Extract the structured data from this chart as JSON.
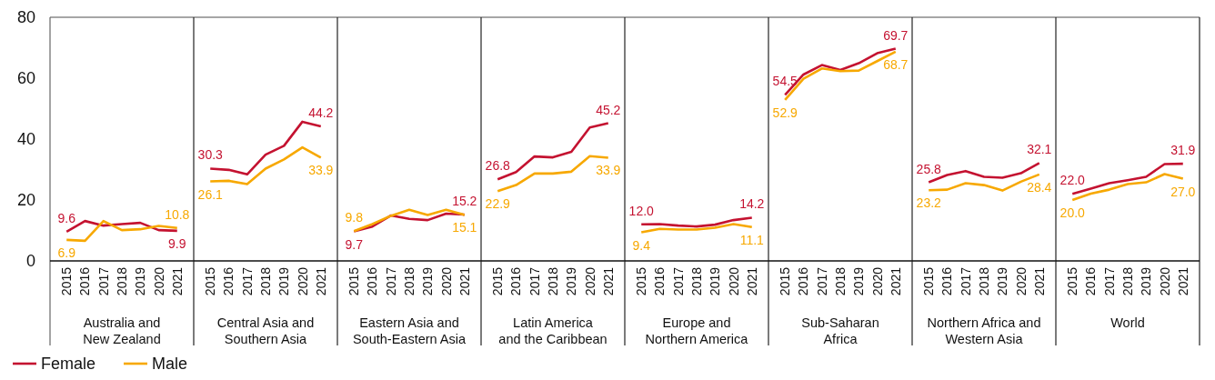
{
  "chart_data": [
    {
      "type": "line",
      "xlabel": "Australia and\nNew Zealand",
      "categories": [
        "2015",
        "2016",
        "2017",
        "2018",
        "2019",
        "2020",
        "2021"
      ],
      "series": [
        {
          "name": "Female",
          "color": "#c41230",
          "values": [
            9.6,
            13.1,
            11.6,
            12.1,
            12.5,
            10.1,
            9.9
          ],
          "value_labels": [
            "9.6",
            null,
            null,
            null,
            null,
            null,
            "9.9"
          ]
        },
        {
          "name": "Male",
          "color": "#f7a800",
          "values": [
            6.9,
            6.6,
            13.1,
            10.1,
            10.4,
            11.5,
            10.8
          ],
          "value_labels": [
            "6.9",
            null,
            null,
            null,
            null,
            null,
            "10.8"
          ]
        }
      ],
      "ylim": [
        0,
        80
      ],
      "yticks": [
        0,
        20,
        40,
        60,
        80
      ],
      "legend": "bottom"
    },
    {
      "type": "line",
      "xlabel": "Central Asia and\nSouthern Asia",
      "categories": [
        "2015",
        "2016",
        "2017",
        "2018",
        "2019",
        "2020",
        "2021"
      ],
      "series": [
        {
          "color": "#c41230",
          "values": [
            30.3,
            29.9,
            28.4,
            34.9,
            37.8,
            45.7,
            44.2
          ],
          "value_labels": [
            "30.3",
            null,
            null,
            null,
            null,
            null,
            "44.2"
          ]
        },
        {
          "color": "#f7a800",
          "values": [
            26.1,
            26.3,
            25.2,
            30.3,
            33.3,
            37.3,
            33.9
          ],
          "value_labels": [
            "26.1",
            null,
            null,
            null,
            null,
            null,
            "33.9"
          ]
        }
      ],
      "ylim": [
        0,
        80
      ],
      "tick_labels": "x"
    },
    {
      "type": "line",
      "xlabel": "Eastern Asia and\nSouth-Eastern Asia",
      "categories": [
        "2015",
        "2016",
        "2017",
        "2018",
        "2019",
        "2020",
        "2021"
      ],
      "series": [
        {
          "color": "#c41230",
          "values": [
            9.7,
            11.3,
            14.9,
            13.8,
            13.4,
            15.5,
            15.2
          ],
          "value_labels": [
            "9.7",
            null,
            null,
            null,
            null,
            null,
            "15.2"
          ]
        },
        {
          "color": "#f7a800",
          "values": [
            9.8,
            12.1,
            14.8,
            16.8,
            15.1,
            16.8,
            15.1
          ],
          "value_labels": [
            "9.8",
            null,
            null,
            null,
            null,
            null,
            "15.1"
          ]
        }
      ],
      "ylim": [
        0,
        80
      ],
      "tick_labels": "x"
    },
    {
      "type": "line",
      "xlabel": "Latin America\nand the Caribbean",
      "categories": [
        "2015",
        "2016",
        "2017",
        "2018",
        "2019",
        "2020",
        "2021"
      ],
      "series": [
        {
          "color": "#c41230",
          "values": [
            26.8,
            29.2,
            34.3,
            34.0,
            35.8,
            43.8,
            45.2
          ],
          "value_labels": [
            "26.8",
            null,
            null,
            null,
            null,
            null,
            "45.2"
          ]
        },
        {
          "color": "#f7a800",
          "values": [
            22.9,
            24.9,
            28.7,
            28.7,
            29.3,
            34.4,
            33.9
          ],
          "value_labels": [
            "22.9",
            null,
            null,
            null,
            null,
            null,
            "33.9"
          ]
        }
      ],
      "ylim": [
        0,
        80
      ],
      "tick_labels": "x"
    },
    {
      "type": "line",
      "xlabel": "Europe and\nNorthern America",
      "categories": [
        "2015",
        "2016",
        "2017",
        "2018",
        "2019",
        "2020",
        "2021"
      ],
      "series": [
        {
          "color": "#c41230",
          "values": [
            12.0,
            12.1,
            11.6,
            11.3,
            11.9,
            13.4,
            14.2
          ],
          "value_labels": [
            "12.0",
            null,
            null,
            null,
            null,
            null,
            "14.2"
          ]
        },
        {
          "color": "#f7a800",
          "values": [
            9.4,
            10.5,
            10.3,
            10.3,
            10.9,
            12.1,
            11.1
          ],
          "value_labels": [
            "9.4",
            null,
            null,
            null,
            null,
            null,
            "11.1"
          ]
        }
      ],
      "ylim": [
        0,
        80
      ],
      "tick_labels": "x"
    },
    {
      "type": "line",
      "xlabel": "Sub-Saharan\nAfrica",
      "categories": [
        "2015",
        "2016",
        "2017",
        "2018",
        "2019",
        "2020",
        "2021"
      ],
      "series": [
        {
          "color": "#c41230",
          "values": [
            54.5,
            61.2,
            64.3,
            62.7,
            64.9,
            68.2,
            69.7
          ],
          "value_labels": [
            "54.5",
            null,
            null,
            null,
            null,
            null,
            "69.7"
          ]
        },
        {
          "color": "#f7a800",
          "values": [
            52.9,
            59.8,
            63.2,
            62.3,
            62.5,
            65.6,
            68.7
          ],
          "value_labels": [
            "52.9",
            null,
            null,
            null,
            null,
            null,
            "68.7"
          ]
        }
      ],
      "ylim": [
        0,
        80
      ],
      "tick_labels": "x"
    },
    {
      "type": "line",
      "xlabel": "Northern Africa and\nWestern Asia",
      "categories": [
        "2015",
        "2016",
        "2017",
        "2018",
        "2019",
        "2020",
        "2021"
      ],
      "series": [
        {
          "color": "#c41230",
          "values": [
            25.8,
            28.2,
            29.5,
            27.6,
            27.3,
            28.8,
            32.1
          ],
          "value_labels": [
            "25.8",
            null,
            null,
            null,
            null,
            null,
            "32.1"
          ]
        },
        {
          "color": "#f7a800",
          "values": [
            23.2,
            23.4,
            25.5,
            24.9,
            23.1,
            26.0,
            28.4
          ],
          "value_labels": [
            "23.2",
            null,
            null,
            null,
            null,
            null,
            "28.4"
          ]
        }
      ],
      "ylim": [
        0,
        80
      ],
      "tick_labels": "x"
    },
    {
      "type": "line",
      "xlabel": "World",
      "categories": [
        "2015",
        "2016",
        "2017",
        "2018",
        "2019",
        "2020",
        "2021"
      ],
      "series": [
        {
          "color": "#c41230",
          "values": [
            22.0,
            23.7,
            25.5,
            26.5,
            27.6,
            31.8,
            31.9
          ],
          "value_labels": [
            "22.0",
            null,
            null,
            null,
            null,
            null,
            "31.9"
          ]
        },
        {
          "color": "#f7a800",
          "values": [
            20.0,
            22.1,
            23.4,
            25.2,
            25.8,
            28.5,
            27.0
          ],
          "value_labels": [
            "20.0",
            null,
            null,
            null,
            null,
            null,
            "27.0"
          ]
        }
      ],
      "ylim": [
        0,
        80
      ],
      "tick_labels": "x"
    }
  ]
}
